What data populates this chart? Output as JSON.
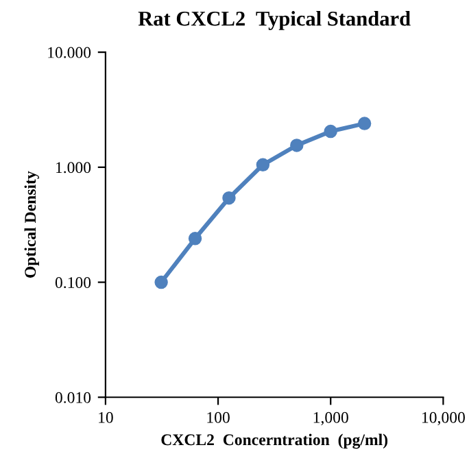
{
  "chart_data": {
    "type": "line",
    "title": "Rat CXCL2  Typical Standard",
    "xlabel": "CXCL2  Concerntration  (pg/ml)",
    "ylabel": "Optical Density",
    "log": "xy",
    "x": [
      31.25,
      62.5,
      125,
      250,
      500,
      1000,
      2000
    ],
    "series": [
      {
        "color": "#4f81bd",
        "values": [
          0.1,
          0.24,
          0.54,
          1.05,
          1.55,
          2.05,
          2.4
        ]
      }
    ],
    "xlim": [
      10,
      10000
    ],
    "xticks": [
      10,
      100,
      {
        "value": 1000,
        "label": "1,000"
      },
      {
        "value": 10000,
        "label": "10,000"
      }
    ],
    "ylim": [
      0.01,
      10
    ],
    "yticks": [
      {
        "value": 0.01,
        "label": "0.010"
      },
      {
        "value": 0.1,
        "label": "0.100"
      },
      {
        "value": 1,
        "label": "1.000"
      },
      {
        "value": 10,
        "label": "10.000"
      }
    ],
    "marker": "circle",
    "line_style": "solid",
    "grid": false,
    "legend": false
  }
}
